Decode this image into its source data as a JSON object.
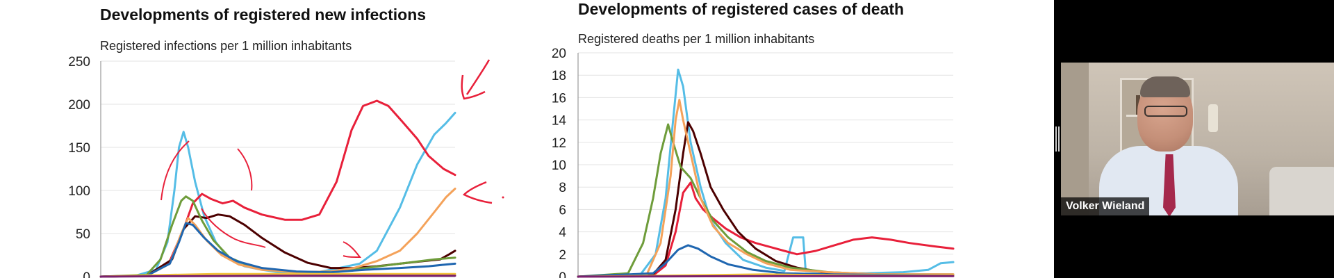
{
  "chart_data": [
    {
      "type": "line",
      "title": "Developments of registered new infections",
      "ylabel": "Registered infections per 1 million inhabitants",
      "ylim": [
        0,
        250
      ],
      "yticks": [
        0,
        50,
        100,
        150,
        200,
        250
      ],
      "grid": true,
      "series": [
        {
          "color": "#55bde6",
          "values": [
            [
              0,
              0
            ],
            [
              30,
              1
            ],
            [
              48,
              8
            ],
            [
              58,
              40
            ],
            [
              64,
              100
            ],
            [
              68,
              150
            ],
            [
              72,
              168
            ],
            [
              76,
              150
            ],
            [
              82,
              110
            ],
            [
              90,
              70
            ],
            [
              100,
              40
            ],
            [
              112,
              20
            ],
            [
              125,
              12
            ],
            [
              140,
              8
            ],
            [
              160,
              4
            ],
            [
              180,
              3
            ],
            [
              200,
              8
            ],
            [
              225,
              15
            ],
            [
              240,
              30
            ],
            [
              260,
              80
            ],
            [
              275,
              130
            ],
            [
              290,
              165
            ],
            [
              300,
              178
            ],
            [
              308,
              190
            ]
          ]
        },
        {
          "color": "#e8203a",
          "values": [
            [
              0,
              0
            ],
            [
              40,
              1
            ],
            [
              60,
              18
            ],
            [
              72,
              55
            ],
            [
              80,
              85
            ],
            [
              88,
              96
            ],
            [
              96,
              90
            ],
            [
              106,
              85
            ],
            [
              115,
              88
            ],
            [
              125,
              80
            ],
            [
              140,
              72
            ],
            [
              160,
              66
            ],
            [
              175,
              66
            ],
            [
              190,
              72
            ],
            [
              205,
              110
            ],
            [
              218,
              170
            ],
            [
              228,
              198
            ],
            [
              240,
              204
            ],
            [
              250,
              198
            ],
            [
              262,
              180
            ],
            [
              275,
              160
            ],
            [
              285,
              140
            ],
            [
              298,
              125
            ],
            [
              308,
              118
            ]
          ]
        },
        {
          "color": "#4c0000",
          "values": [
            [
              0,
              0
            ],
            [
              40,
              1
            ],
            [
              62,
              20
            ],
            [
              72,
              55
            ],
            [
              82,
              70
            ],
            [
              92,
              68
            ],
            [
              102,
              72
            ],
            [
              112,
              70
            ],
            [
              125,
              60
            ],
            [
              140,
              45
            ],
            [
              160,
              28
            ],
            [
              180,
              16
            ],
            [
              200,
              10
            ],
            [
              220,
              10
            ],
            [
              240,
              12
            ],
            [
              260,
              15
            ],
            [
              280,
              18
            ],
            [
              295,
              20
            ],
            [
              303,
              26
            ],
            [
              308,
              30
            ]
          ]
        },
        {
          "color": "#6e9c3a",
          "values": [
            [
              0,
              0
            ],
            [
              40,
              2
            ],
            [
              52,
              20
            ],
            [
              62,
              60
            ],
            [
              70,
              88
            ],
            [
              74,
              93
            ],
            [
              80,
              88
            ],
            [
              88,
              65
            ],
            [
              98,
              42
            ],
            [
              112,
              22
            ],
            [
              130,
              12
            ],
            [
              150,
              8
            ],
            [
              170,
              5
            ],
            [
              200,
              6
            ],
            [
              230,
              10
            ],
            [
              260,
              15
            ],
            [
              290,
              20
            ],
            [
              308,
              22
            ]
          ]
        },
        {
          "color": "#f4a25a",
          "values": [
            [
              0,
              0
            ],
            [
              40,
              1
            ],
            [
              60,
              15
            ],
            [
              70,
              50
            ],
            [
              76,
              68
            ],
            [
              82,
              60
            ],
            [
              92,
              42
            ],
            [
              105,
              25
            ],
            [
              120,
              14
            ],
            [
              140,
              8
            ],
            [
              170,
              5
            ],
            [
              200,
              6
            ],
            [
              220,
              10
            ],
            [
              240,
              18
            ],
            [
              260,
              30
            ],
            [
              275,
              50
            ],
            [
              290,
              75
            ],
            [
              300,
              92
            ],
            [
              308,
              102
            ]
          ]
        },
        {
          "color": "#1f66b0",
          "values": [
            [
              0,
              0
            ],
            [
              40,
              1
            ],
            [
              60,
              15
            ],
            [
              68,
              40
            ],
            [
              74,
              62
            ],
            [
              80,
              60
            ],
            [
              90,
              45
            ],
            [
              102,
              30
            ],
            [
              118,
              18
            ],
            [
              140,
              10
            ],
            [
              170,
              6
            ],
            [
              200,
              5
            ],
            [
              230,
              8
            ],
            [
              260,
              10
            ],
            [
              285,
              12
            ],
            [
              300,
              14
            ],
            [
              308,
              15
            ]
          ]
        },
        {
          "color": "#f2c23a",
          "values": [
            [
              0,
              0
            ],
            [
              60,
              2
            ],
            [
              100,
              3
            ],
            [
              150,
              3
            ],
            [
              200,
              3
            ],
            [
              250,
              3
            ],
            [
              308,
              3
            ]
          ]
        },
        {
          "color": "#7a1f6e",
          "values": [
            [
              0,
              0
            ],
            [
              60,
              0.5
            ],
            [
              150,
              1
            ],
            [
              250,
              1
            ],
            [
              308,
              1
            ]
          ]
        }
      ]
    },
    {
      "type": "line",
      "title": "Developments of registered cases of death",
      "ylabel": "Registered deaths per 1 million inhabitants",
      "ylim": [
        0,
        20
      ],
      "yticks": [
        0,
        2,
        4,
        6,
        8,
        10,
        12,
        14,
        16,
        18,
        20
      ],
      "grid": true,
      "series": [
        {
          "color": "#55bde6",
          "values": [
            [
              0,
              0
            ],
            [
              50,
              0.2
            ],
            [
              62,
              2
            ],
            [
              70,
              7
            ],
            [
              76,
              14
            ],
            [
              80,
              18.5
            ],
            [
              84,
              17
            ],
            [
              90,
              12
            ],
            [
              98,
              8
            ],
            [
              106,
              5
            ],
            [
              118,
              3
            ],
            [
              132,
              1.5
            ],
            [
              150,
              0.8
            ],
            [
              165,
              0.5
            ],
            [
              172,
              3.5
            ],
            [
              180,
              3.5
            ],
            [
              182,
              0.5
            ],
            [
              200,
              0.3
            ],
            [
              230,
              0.3
            ],
            [
              260,
              0.4
            ],
            [
              280,
              0.6
            ],
            [
              290,
              1.2
            ],
            [
              300,
              1.3
            ]
          ]
        },
        {
          "color": "#e8203a",
          "values": [
            [
              0,
              0
            ],
            [
              60,
              0.1
            ],
            [
              70,
              1
            ],
            [
              78,
              4
            ],
            [
              84,
              7.5
            ],
            [
              90,
              8.4
            ],
            [
              94,
              7
            ],
            [
              100,
              6
            ],
            [
              108,
              5.2
            ],
            [
              118,
              4.3
            ],
            [
              130,
              3.5
            ],
            [
              142,
              3
            ],
            [
              155,
              2.6
            ],
            [
              165,
              2.3
            ],
            [
              175,
              2
            ],
            [
              190,
              2.3
            ],
            [
              205,
              2.8
            ],
            [
              220,
              3.3
            ],
            [
              235,
              3.5
            ],
            [
              250,
              3.3
            ],
            [
              265,
              3
            ],
            [
              285,
              2.7
            ],
            [
              300,
              2.5
            ]
          ]
        },
        {
          "color": "#4c0000",
          "values": [
            [
              0,
              0
            ],
            [
              60,
              0.2
            ],
            [
              70,
              1.5
            ],
            [
              78,
              6
            ],
            [
              84,
              11
            ],
            [
              88,
              13.8
            ],
            [
              92,
              13
            ],
            [
              98,
              11
            ],
            [
              106,
              8
            ],
            [
              116,
              6
            ],
            [
              128,
              4
            ],
            [
              142,
              2.5
            ],
            [
              158,
              1.4
            ],
            [
              175,
              0.8
            ],
            [
              195,
              0.4
            ],
            [
              220,
              0.2
            ],
            [
              250,
              0.1
            ],
            [
              300,
              0.1
            ]
          ]
        },
        {
          "color": "#6e9c3a",
          "values": [
            [
              0,
              0
            ],
            [
              40,
              0.3
            ],
            [
              52,
              3
            ],
            [
              60,
              7
            ],
            [
              66,
              11
            ],
            [
              72,
              13.6
            ],
            [
              76,
              12
            ],
            [
              82,
              9.8
            ],
            [
              90,
              8.8
            ],
            [
              98,
              7
            ],
            [
              108,
              5
            ],
            [
              120,
              3.5
            ],
            [
              135,
              2.2
            ],
            [
              150,
              1.4
            ],
            [
              170,
              0.8
            ],
            [
              200,
              0.4
            ],
            [
              240,
              0.2
            ],
            [
              300,
              0.2
            ]
          ]
        },
        {
          "color": "#f4a25a",
          "values": [
            [
              0,
              0
            ],
            [
              55,
              0.2
            ],
            [
              66,
              3
            ],
            [
              74,
              9
            ],
            [
              78,
              14
            ],
            [
              81,
              15.8
            ],
            [
              84,
              14
            ],
            [
              90,
              11
            ],
            [
              98,
              7
            ],
            [
              108,
              4.5
            ],
            [
              120,
              3
            ],
            [
              135,
              2
            ],
            [
              150,
              1.2
            ],
            [
              170,
              0.6
            ],
            [
              200,
              0.4
            ],
            [
              240,
              0.2
            ],
            [
              300,
              0.2
            ]
          ]
        },
        {
          "color": "#1f66b0",
          "values": [
            [
              0,
              0
            ],
            [
              60,
              0.3
            ],
            [
              70,
              1.2
            ],
            [
              80,
              2.4
            ],
            [
              88,
              2.8
            ],
            [
              96,
              2.5
            ],
            [
              106,
              1.8
            ],
            [
              120,
              1.1
            ],
            [
              140,
              0.6
            ],
            [
              165,
              0.3
            ],
            [
              200,
              0.2
            ],
            [
              300,
              0.1
            ]
          ]
        },
        {
          "color": "#f2c23a",
          "values": [
            [
              0,
              0
            ],
            [
              80,
              0.1
            ],
            [
              150,
              0.2
            ],
            [
              220,
              0.1
            ],
            [
              300,
              0.1
            ]
          ]
        },
        {
          "color": "#7a1f6e",
          "values": [
            [
              0,
              0
            ],
            [
              150,
              0.05
            ],
            [
              300,
              0.05
            ]
          ]
        }
      ]
    }
  ],
  "video": {
    "participant_name": "Volker Wieland"
  }
}
